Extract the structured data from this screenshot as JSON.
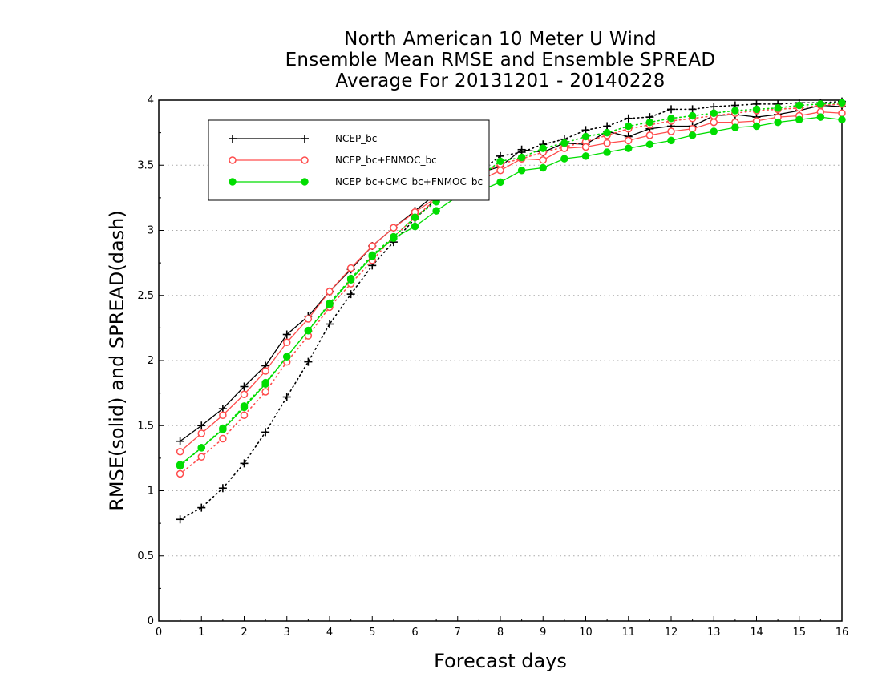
{
  "chart_data": {
    "type": "line",
    "title": [
      "North American 10 Meter U Wind",
      "Ensemble Mean RMSE and Ensemble SPREAD",
      "Average For 20131201 - 20140228"
    ],
    "xlabel": "Forecast days",
    "ylabel": "RMSE(solid) and SPREAD(dash)",
    "xlim": [
      0,
      16
    ],
    "ylim": [
      0,
      4
    ],
    "x_ticks": [
      0,
      1,
      2,
      3,
      4,
      5,
      6,
      7,
      8,
      9,
      10,
      11,
      12,
      13,
      14,
      15,
      16
    ],
    "y_ticks": [
      0,
      0.5,
      1,
      1.5,
      2,
      2.5,
      3,
      3.5,
      4
    ],
    "y_tick_labels": [
      "0",
      "0.5",
      "1",
      "1.5",
      "2",
      "2.5",
      "3",
      "3.5",
      "4"
    ],
    "grid": "horizontal dotted",
    "legend_position": "top-left",
    "x": [
      0.5,
      1.0,
      1.5,
      2.0,
      2.5,
      3.0,
      3.5,
      4.0,
      4.5,
      5.0,
      5.5,
      6.0,
      6.5,
      7.0,
      7.5,
      8.0,
      8.5,
      9.0,
      9.5,
      10.0,
      10.5,
      11.0,
      11.5,
      12.0,
      12.5,
      13.0,
      13.5,
      14.0,
      14.5,
      15.0,
      15.5,
      16.0
    ],
    "series": [
      {
        "name": "NCEP_bc",
        "color": "#000000",
        "marker": "plus",
        "rmse": [
          1.38,
          1.5,
          1.63,
          1.8,
          1.96,
          2.2,
          2.34,
          2.53,
          2.7,
          2.88,
          3.02,
          3.15,
          3.28,
          3.38,
          3.44,
          3.49,
          3.62,
          3.6,
          3.67,
          3.66,
          3.76,
          3.72,
          3.78,
          3.8,
          3.8,
          3.88,
          3.89,
          3.87,
          3.89,
          3.92,
          3.96,
          3.95
        ],
        "spread": [
          0.78,
          0.87,
          1.02,
          1.21,
          1.45,
          1.72,
          1.99,
          2.28,
          2.51,
          2.73,
          2.91,
          3.09,
          3.24,
          3.35,
          3.45,
          3.57,
          3.6,
          3.66,
          3.7,
          3.77,
          3.8,
          3.86,
          3.87,
          3.93,
          3.93,
          3.95,
          3.96,
          3.97,
          3.97,
          3.98,
          3.98,
          3.99
        ]
      },
      {
        "name": "NCEP_bc+FNMOC_bc",
        "color": "#ff4d4d",
        "marker": "open-circle",
        "rmse": [
          1.3,
          1.44,
          1.58,
          1.74,
          1.92,
          2.14,
          2.32,
          2.53,
          2.71,
          2.88,
          3.02,
          3.14,
          3.25,
          3.33,
          3.38,
          3.46,
          3.55,
          3.54,
          3.63,
          3.64,
          3.67,
          3.69,
          3.73,
          3.76,
          3.78,
          3.83,
          3.83,
          3.84,
          3.87,
          3.88,
          3.91,
          3.9
        ],
        "spread": [
          1.13,
          1.26,
          1.4,
          1.58,
          1.76,
          1.99,
          2.19,
          2.41,
          2.59,
          2.77,
          2.95,
          3.1,
          3.24,
          3.34,
          3.42,
          3.51,
          3.55,
          3.6,
          3.64,
          3.68,
          3.73,
          3.78,
          3.81,
          3.84,
          3.86,
          3.88,
          3.9,
          3.92,
          3.93,
          3.94,
          3.96,
          3.97
        ]
      },
      {
        "name": "NCEP_bc+CMC_bc+FNMOC_bc",
        "color": "#00dd00",
        "marker": "filled-circle",
        "rmse": [
          1.2,
          1.33,
          1.47,
          1.64,
          1.82,
          2.03,
          2.23,
          2.43,
          2.62,
          2.8,
          2.94,
          3.03,
          3.15,
          3.26,
          3.3,
          3.37,
          3.46,
          3.48,
          3.55,
          3.57,
          3.6,
          3.63,
          3.66,
          3.69,
          3.73,
          3.76,
          3.79,
          3.8,
          3.83,
          3.85,
          3.87,
          3.85
        ],
        "spread": [
          1.19,
          1.33,
          1.48,
          1.65,
          1.83,
          2.03,
          2.23,
          2.44,
          2.63,
          2.81,
          2.95,
          3.1,
          3.22,
          3.32,
          3.41,
          3.53,
          3.56,
          3.63,
          3.67,
          3.72,
          3.75,
          3.8,
          3.83,
          3.86,
          3.88,
          3.9,
          3.92,
          3.93,
          3.94,
          3.96,
          3.97,
          3.98
        ]
      }
    ]
  }
}
